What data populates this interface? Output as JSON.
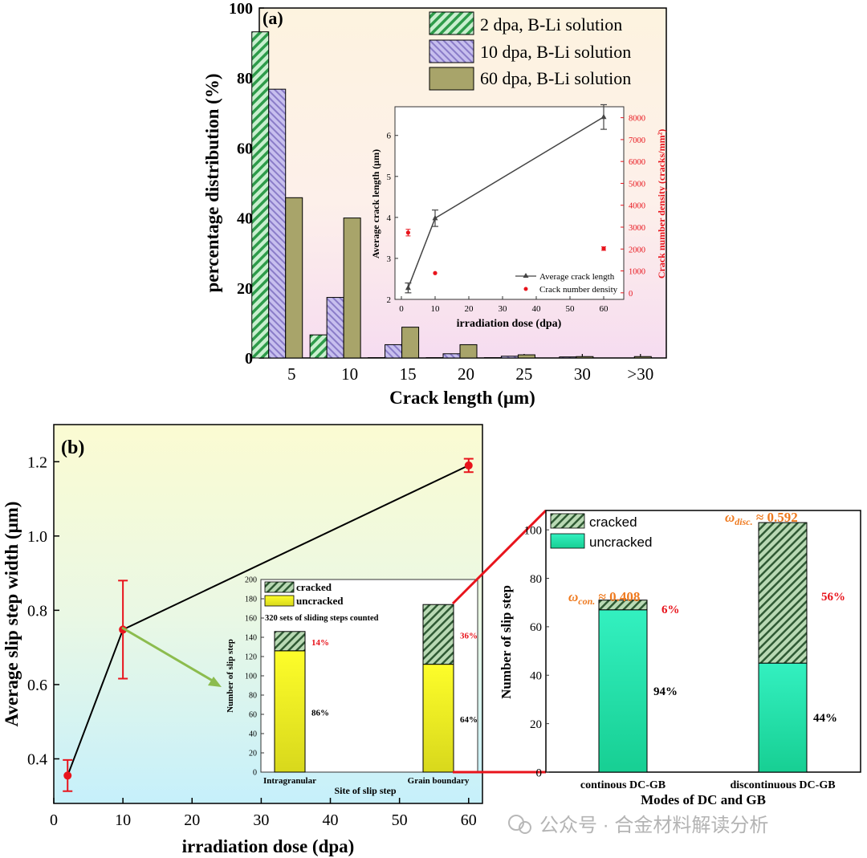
{
  "watermark": "公众号 · 合金材料解读分析",
  "colors": {
    "green": "#4fbf6a",
    "purple": "#a99ad8",
    "olive": "#a8a46a",
    "red": "#e8141c",
    "orange": "#ef7a1f",
    "teal": "#2fd9a8"
  },
  "chart_data": [
    {
      "type": "bar",
      "panel": "(a)",
      "xlabel": "Crack length (μm)",
      "ylabel": "percentage distribution (%)",
      "ylim": [
        0,
        100
      ],
      "yticks": [
        "0",
        "20",
        "40",
        "60",
        "80",
        "100"
      ],
      "categories": [
        "5",
        "10",
        "15",
        "20",
        "25",
        "30",
        ">30"
      ],
      "series": [
        {
          "name": "2 dpa, B-Li solution",
          "values": [
            93.2,
            6.6,
            0.1,
            0.1,
            0.1,
            0.0,
            0.0
          ]
        },
        {
          "name": "10 dpa, B-Li solution",
          "values": [
            76.8,
            17.3,
            3.8,
            1.2,
            0.5,
            0.3,
            0.0
          ]
        },
        {
          "name": "60 dpa, B-Li solution",
          "values": [
            45.8,
            40.0,
            8.8,
            3.8,
            0.9,
            0.4,
            0.4
          ]
        }
      ]
    },
    {
      "type": "line",
      "panel": "(a) inset",
      "xlabel": "irradiation dose (dpa)",
      "ylabel": "Average crack length (μm)",
      "ylabel_right": "Crack number density (cracks/mm²)",
      "xlim": [
        0,
        65
      ],
      "ylim": [
        2,
        6.7
      ],
      "ylim_right": [
        -300,
        8500
      ],
      "xticks": [
        "0",
        "10",
        "20",
        "30",
        "40",
        "50",
        "60"
      ],
      "yticks": [
        "2",
        "3",
        "4",
        "5",
        "6"
      ],
      "yticks_right": [
        "0",
        "1000",
        "2000",
        "3000",
        "4000",
        "5000",
        "6000",
        "7000",
        "8000"
      ],
      "series": [
        {
          "name": "Average crack length",
          "x": [
            2,
            10,
            60
          ],
          "y": [
            2.28,
            3.98,
            6.45
          ],
          "err": [
            0.12,
            0.2,
            0.3
          ]
        },
        {
          "name": "Crack number density",
          "x": [
            2,
            10,
            60
          ],
          "y": [
            2750,
            900,
            2020
          ],
          "err": [
            150,
            0,
            80
          ]
        }
      ]
    },
    {
      "type": "line",
      "panel": "(b)",
      "xlabel": "irradiation dose (dpa)",
      "ylabel": "Average slip step width (μm)",
      "xlim": [
        0,
        62
      ],
      "ylim": [
        0.28,
        1.3
      ],
      "xticks": [
        "0",
        "10",
        "20",
        "30",
        "40",
        "50",
        "60"
      ],
      "yticks": [
        "0.4",
        "0.6",
        "0.8",
        "1.0",
        "1.2"
      ],
      "series": [
        {
          "name": "Average slip step width",
          "x": [
            2,
            10,
            60
          ],
          "y": [
            0.355,
            0.748,
            1.19
          ],
          "err": [
            0.042,
            0.132,
            0.018
          ]
        }
      ]
    },
    {
      "type": "bar",
      "panel": "(b) inset",
      "xlabel": "Site of slip step",
      "ylabel": "Number of slip step",
      "note": "320 sets of sliding steps counted",
      "ylim": [
        0,
        200
      ],
      "yticks": [
        "0",
        "20",
        "40",
        "60",
        "80",
        "100",
        "120",
        "140",
        "160",
        "180",
        "200"
      ],
      "categories": [
        "Intragranular",
        "Grain boundary"
      ],
      "series": [
        {
          "name": "uncracked",
          "values": [
            126,
            112
          ],
          "labels": [
            "86%",
            "64%"
          ]
        },
        {
          "name": "cracked",
          "values": [
            20,
            62
          ],
          "labels": [
            "14%",
            "36%"
          ]
        }
      ]
    },
    {
      "type": "bar",
      "panel": "(b) detail",
      "xlabel": "Modes of DC and GB",
      "ylabel": "Number of slip step",
      "ylim": [
        0,
        108
      ],
      "yticks": [
        "0",
        "20",
        "40",
        "60",
        "80",
        "100"
      ],
      "categories": [
        "continous DC-GB",
        "discontinuous DC-GB"
      ],
      "series": [
        {
          "name": "uncracked",
          "values": [
            67,
            45
          ],
          "labels": [
            "94%",
            "44%"
          ]
        },
        {
          "name": "cracked",
          "values": [
            4,
            58
          ],
          "labels": [
            "6%",
            "56%"
          ]
        }
      ],
      "annotations": [
        "ω",
        "con.",
        " ≈ 0.408",
        "ω",
        "disc.",
        " ≈ 0.592"
      ]
    }
  ]
}
